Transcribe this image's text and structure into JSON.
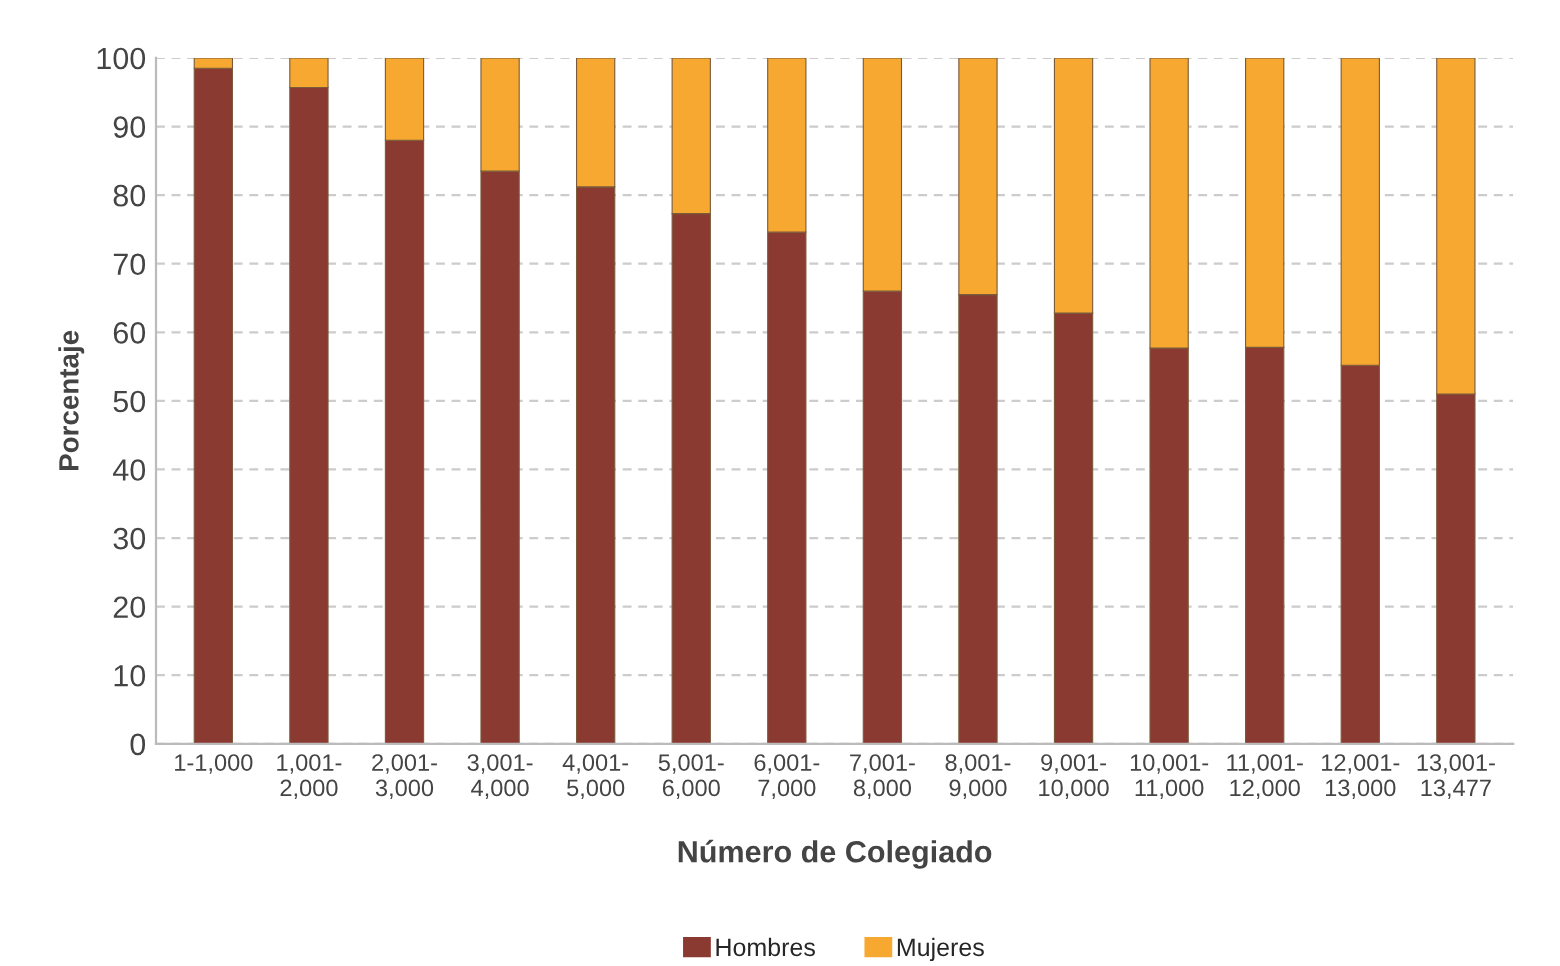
{
  "chart_data": {
    "type": "bar",
    "stacked": true,
    "xlabel": "Número de Colegiado",
    "ylabel": "Porcentaje",
    "categories": [
      "1-1,000",
      "1,001-\n2,000",
      "2,001-\n3,000",
      "3,001-\n4,000",
      "4,001-\n5,000",
      "5,001-\n6,000",
      "6,001-\n7,000",
      "7,001-\n8,000",
      "8,001-\n9,000",
      "9,001-\n10,000",
      "10,001-\n11,000",
      "11,001-\n12,000",
      "12,001-\n13,000",
      "13,001-\n13,477"
    ],
    "series": [
      {
        "name": "Hombres",
        "color": "#8b3a32",
        "values": [
          98.5,
          95.7,
          88,
          83.5,
          81.2,
          77.3,
          74.6,
          66,
          65.5,
          62.8,
          57.7,
          57.8,
          55.2,
          51
        ]
      },
      {
        "name": "Mujeres",
        "color": "#f7a830",
        "values": [
          1.5,
          4.3,
          12,
          16.5,
          18.8,
          22.7,
          25.4,
          34,
          34.5,
          37.2,
          42.3,
          42.2,
          44.8,
          49
        ]
      }
    ],
    "ylim": [
      0,
      100
    ],
    "yticks": [
      0,
      10,
      20,
      30,
      40,
      50,
      60,
      70,
      80,
      90,
      100
    ],
    "grid": "y",
    "legend": "bottom"
  }
}
